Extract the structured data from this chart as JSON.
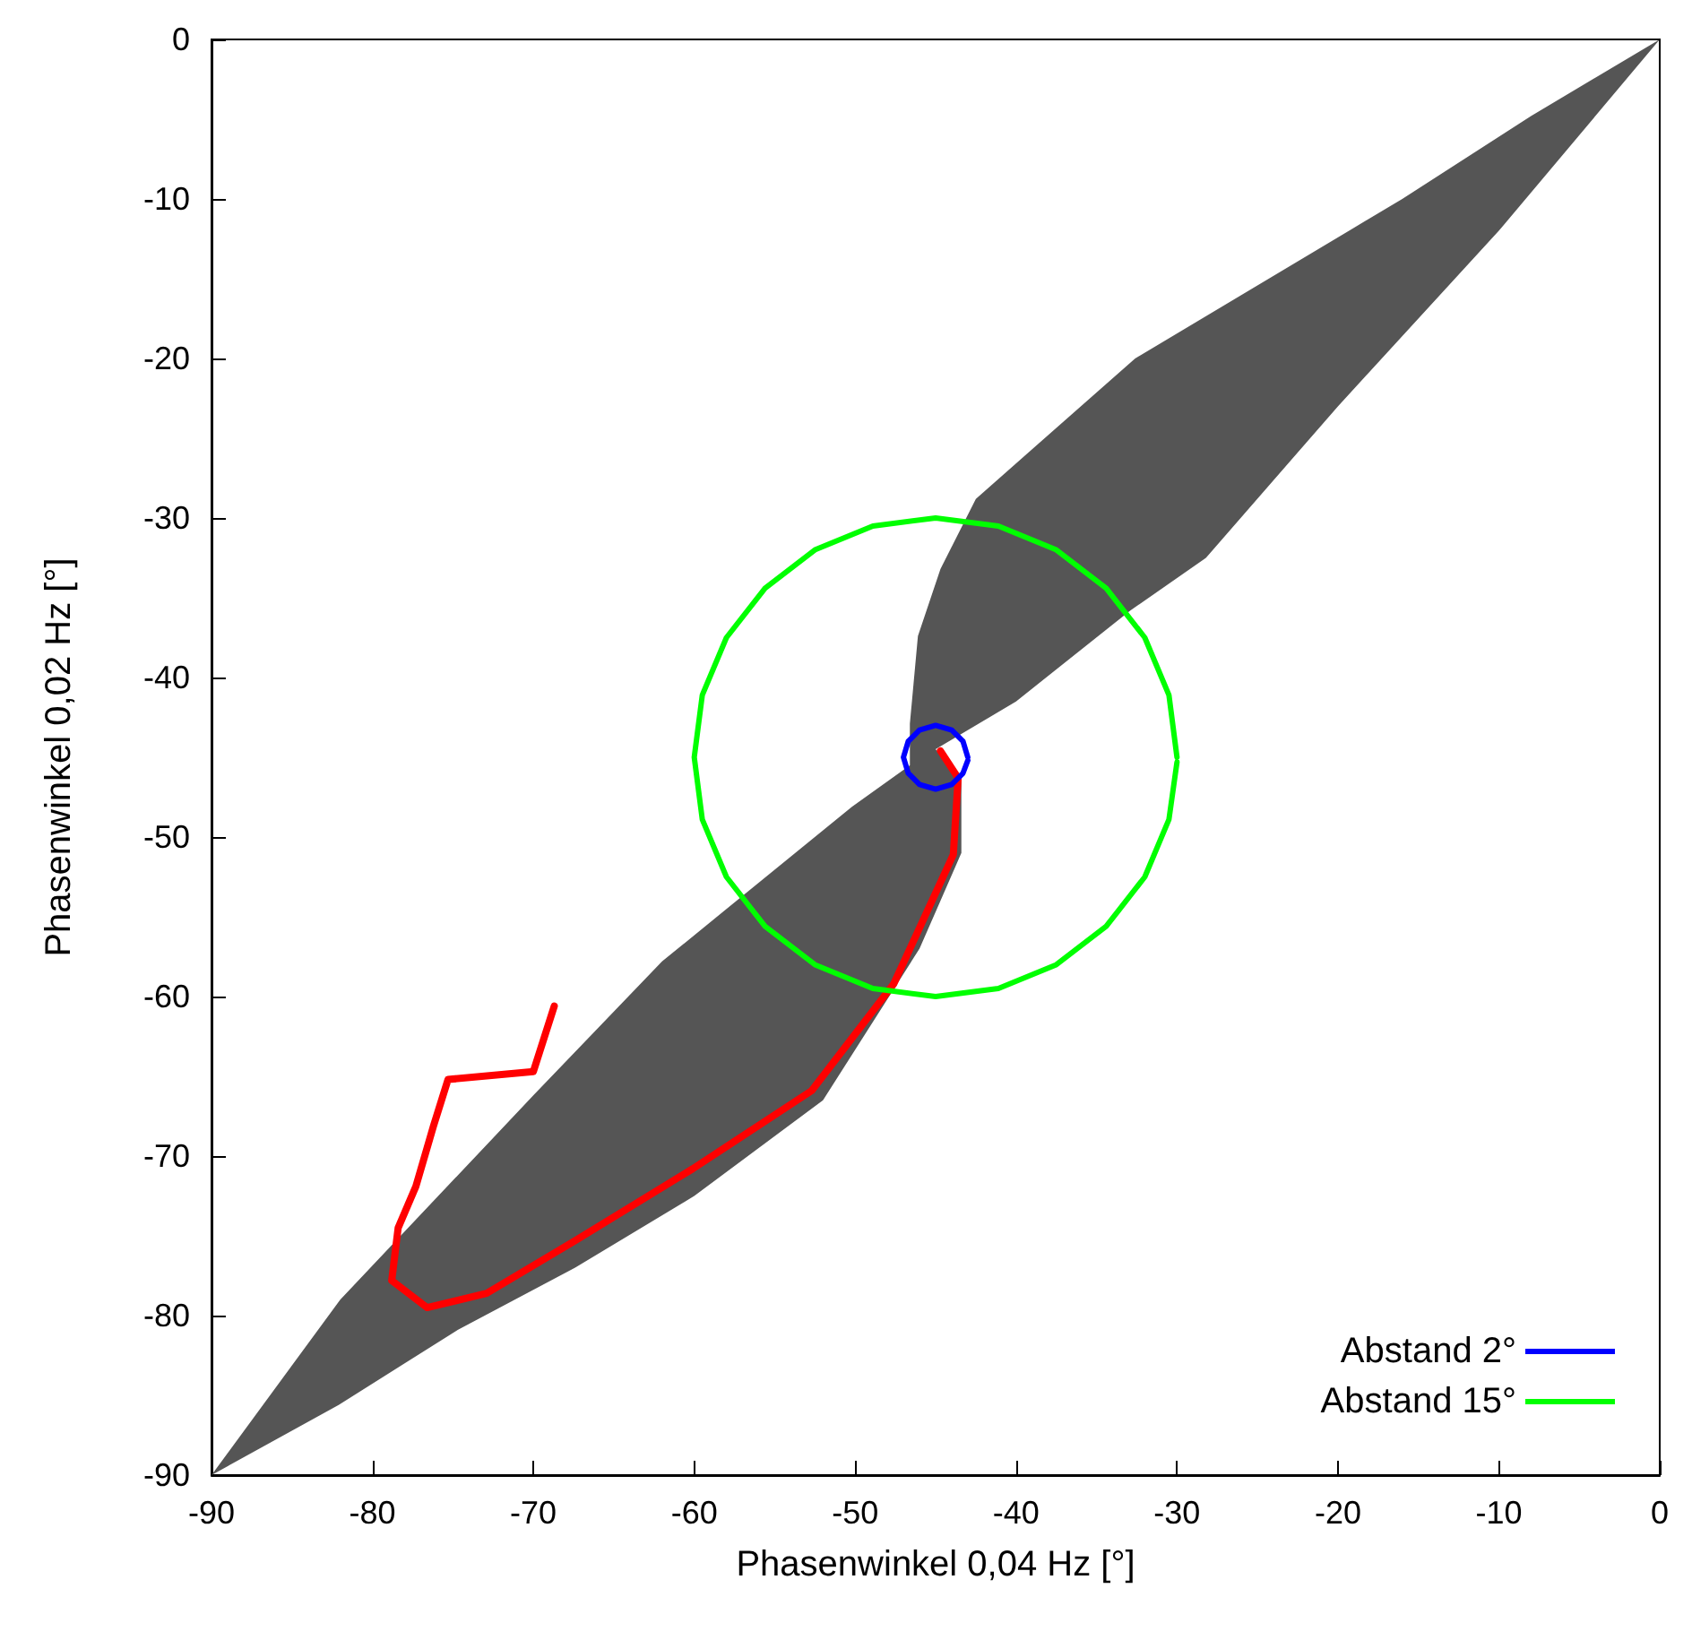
{
  "chart_data": {
    "type": "line",
    "xlabel": "Phasenwinkel 0,04 Hz [°]",
    "ylabel": "Phasenwinkel 0,02 Hz [°]",
    "xlim": [
      -90,
      0
    ],
    "ylim": [
      -90,
      0
    ],
    "xticks": [
      -90,
      -80,
      -70,
      -60,
      -50,
      -40,
      -30,
      -20,
      -10,
      0
    ],
    "yticks": [
      -90,
      -80,
      -70,
      -60,
      -50,
      -40,
      -30,
      -20,
      -10,
      0
    ],
    "grid": false,
    "legend": "bottom right",
    "marker": "none",
    "line_style": "solid",
    "series": [
      {
        "type": "area",
        "color": "#555555",
        "x": [
          -90,
          -82,
          -70,
          -62,
          -50.2,
          -46.6,
          -46.6,
          -46.1,
          -44.7,
          -42.5,
          -32.6,
          -16,
          -8,
          0,
          -10,
          -20,
          -28.2,
          -32.9,
          -40,
          -45,
          -43.4,
          -43.4,
          -46,
          -52,
          -60,
          -67.4,
          -74.7,
          -82.1,
          -90
        ],
        "values": [
          -90,
          -79,
          -66.2,
          -57.8,
          -48.1,
          -45.5,
          -42.9,
          -37.4,
          -33.2,
          -28.8,
          -20,
          -10,
          -4.8,
          0,
          -12,
          -23,
          -32.5,
          -35.8,
          -41.5,
          -44.5,
          -46.5,
          -51,
          -57,
          -66.5,
          -72.5,
          -77,
          -80.9,
          -85.6,
          -90
        ]
      },
      {
        "color": "#ff0000",
        "x": [
          -44.7,
          -43.6,
          -43.9,
          -47.6,
          -52.7,
          -60.1,
          -67.4,
          -72.9,
          -76.6,
          -78.8,
          -78.4,
          -77.3,
          -76.2,
          -75.3,
          -70,
          -68.7
        ],
        "values": [
          -44.6,
          -46.3,
          -51.1,
          -59.2,
          -65.9,
          -70.8,
          -75.3,
          -78.6,
          -79.5,
          -77.8,
          -74.5,
          -71.9,
          -68.1,
          -65.2,
          -64.7,
          -60.6
        ]
      },
      {
        "name": "Abstand 2°",
        "color": "#0000ff",
        "x": [
          -43,
          -43.3,
          -44,
          -45,
          -46,
          -46.7,
          -47,
          -46.7,
          -46,
          -45,
          -44,
          -43.3,
          -43
        ],
        "values": [
          -45,
          -44,
          -43.3,
          -43,
          -43.3,
          -44,
          -45,
          -46,
          -46.7,
          -47,
          -46.7,
          -46,
          -45.2
        ]
      },
      {
        "name": "Abstand 15°",
        "color": "#00ff00",
        "x": [
          -30,
          -30.5,
          -32,
          -34.4,
          -37.5,
          -41.1,
          -45,
          -48.9,
          -52.5,
          -55.6,
          -58,
          -59.5,
          -60,
          -59.5,
          -58,
          -55.6,
          -52.5,
          -48.9,
          -45,
          -41.1,
          -37.5,
          -34.4,
          -32,
          -30.5,
          -30
        ],
        "values": [
          -45,
          -41.1,
          -37.5,
          -34.4,
          -32,
          -30.5,
          -30,
          -30.5,
          -32,
          -34.4,
          -37.5,
          -41.1,
          -45,
          -48.9,
          -52.5,
          -55.6,
          -58,
          -59.5,
          -60,
          -59.5,
          -58,
          -55.6,
          -52.5,
          -48.9,
          -45.3
        ]
      }
    ]
  }
}
